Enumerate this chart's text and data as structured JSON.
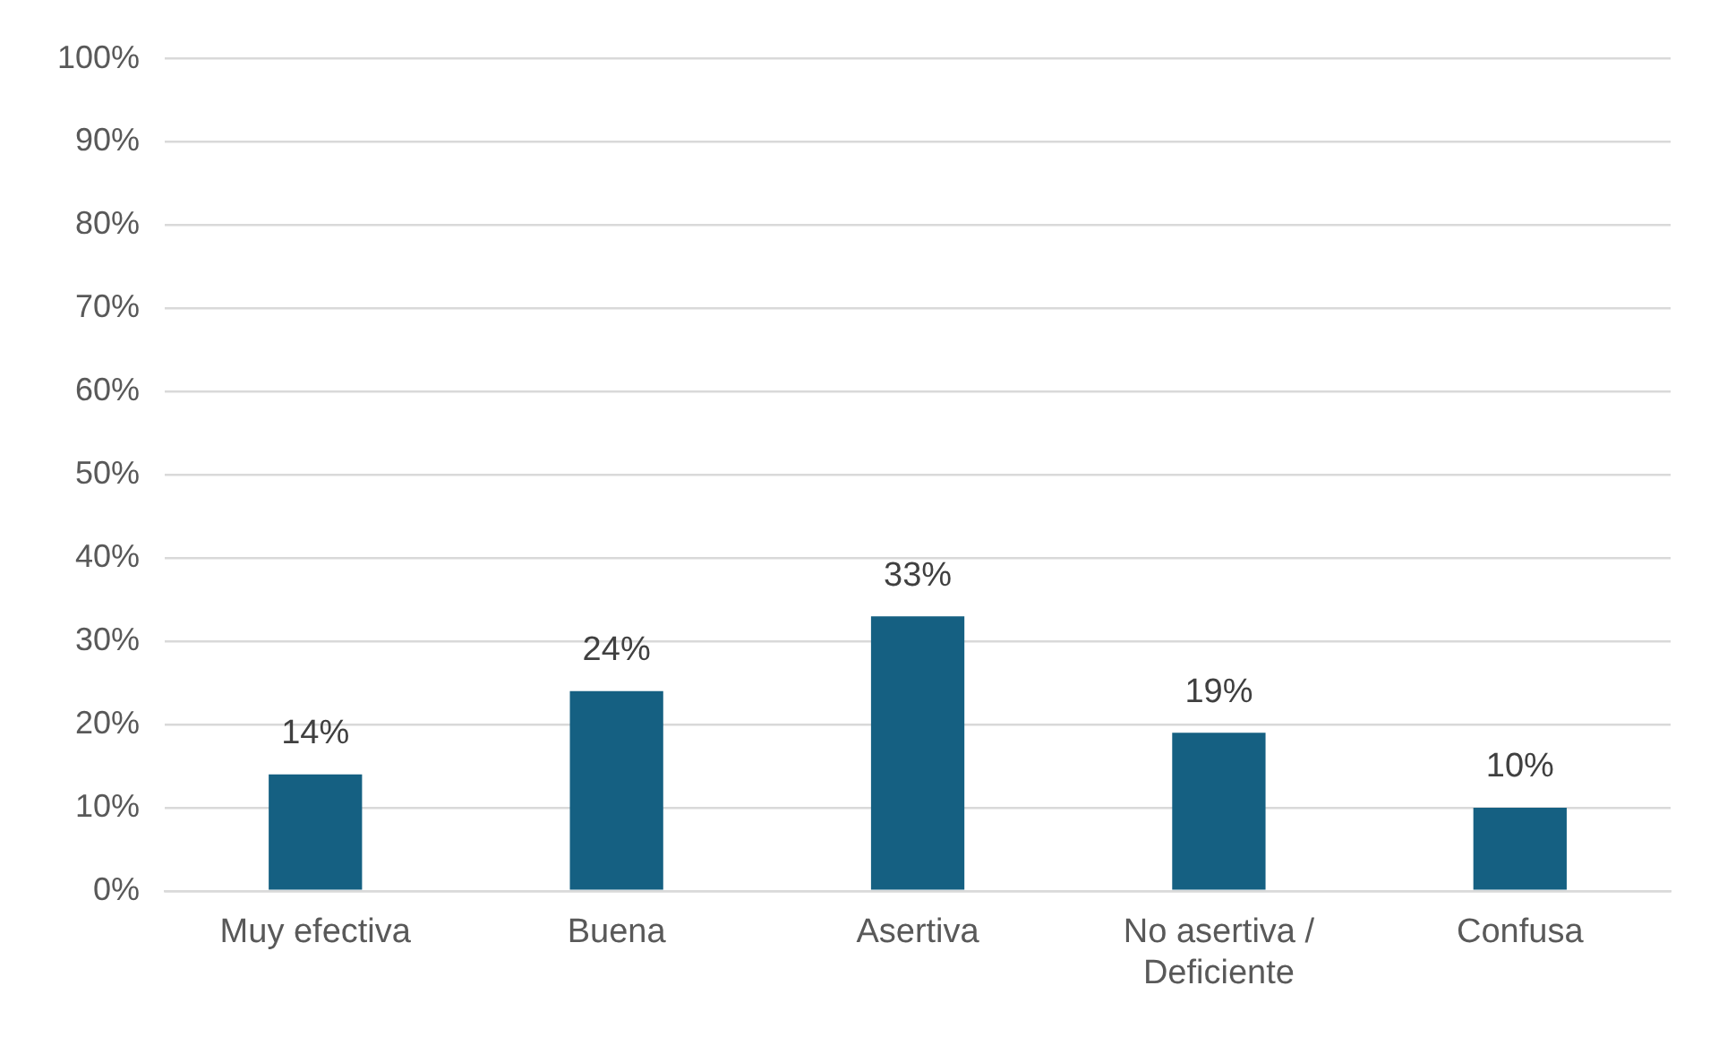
{
  "chart_data": {
    "type": "bar",
    "categories": [
      "Muy efectiva",
      "Buena",
      "Asertiva",
      "No asertiva / Deficiente",
      "Confusa"
    ],
    "values": [
      14,
      24,
      33,
      19,
      10
    ],
    "value_labels": [
      "14%",
      "24%",
      "33%",
      "19%",
      "10%"
    ],
    "color": "#156082",
    "ylim": [
      0,
      100
    ],
    "yticks": [
      {
        "value": 0,
        "label": "0%"
      },
      {
        "value": 10,
        "label": "10%"
      },
      {
        "value": 20,
        "label": "20%"
      },
      {
        "value": 30,
        "label": "30%"
      },
      {
        "value": 40,
        "label": "40%"
      },
      {
        "value": 50,
        "label": "50%"
      },
      {
        "value": 60,
        "label": "60%"
      },
      {
        "value": 70,
        "label": "70%"
      },
      {
        "value": 80,
        "label": "80%"
      },
      {
        "value": 90,
        "label": "90%"
      },
      {
        "value": 100,
        "label": "100%"
      }
    ],
    "grid": "y"
  }
}
